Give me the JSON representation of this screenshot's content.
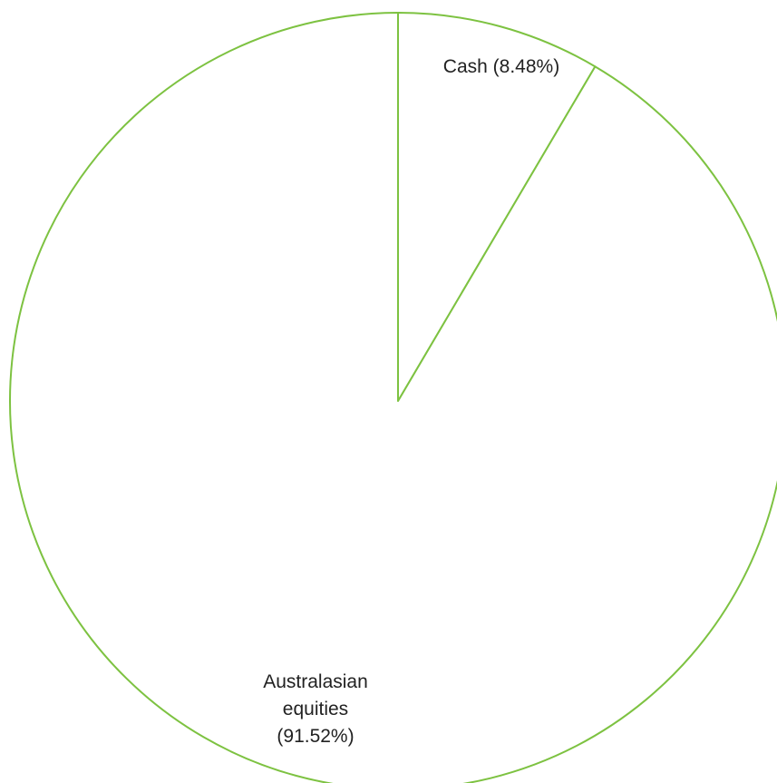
{
  "chart_data": {
    "type": "pie",
    "title": "",
    "slices": [
      {
        "label": "Cash (8.48%)",
        "value": 8.48,
        "label_lines": [
          "Cash (8.48%)"
        ]
      },
      {
        "label": "Australasian equities (91.52%)",
        "value": 91.52,
        "label_lines": [
          "Australasian",
          "equities",
          "(91.52%)"
        ]
      }
    ],
    "start_angle": "12 o'clock",
    "direction": "clockwise",
    "legend": "none"
  },
  "colors": {
    "slice_fill": "#ffffff",
    "slice_stroke": "#7dc241",
    "label_text": "#222222",
    "background": "#ffffff"
  }
}
